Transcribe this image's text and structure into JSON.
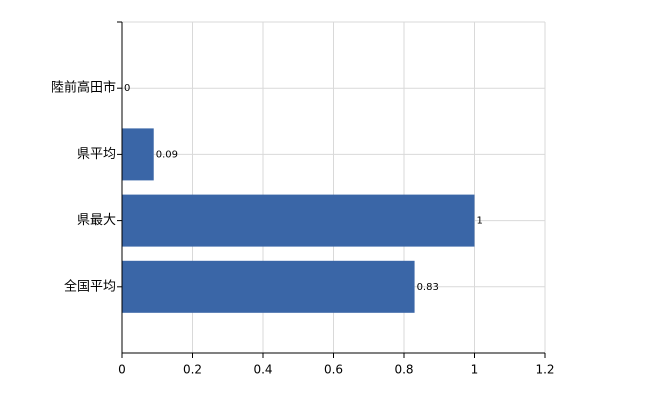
{
  "chart_data": {
    "type": "bar",
    "orientation": "horizontal",
    "categories": [
      "陸前高田市",
      "県平均",
      "県最大",
      "全国平均"
    ],
    "values": [
      0,
      0.09,
      1,
      0.83
    ],
    "color": "#3a66a7",
    "xlim": [
      0,
      1.2
    ],
    "xticks": [
      0,
      0.2,
      0.4,
      0.6,
      0.8,
      1,
      1.2
    ],
    "grid": true
  }
}
